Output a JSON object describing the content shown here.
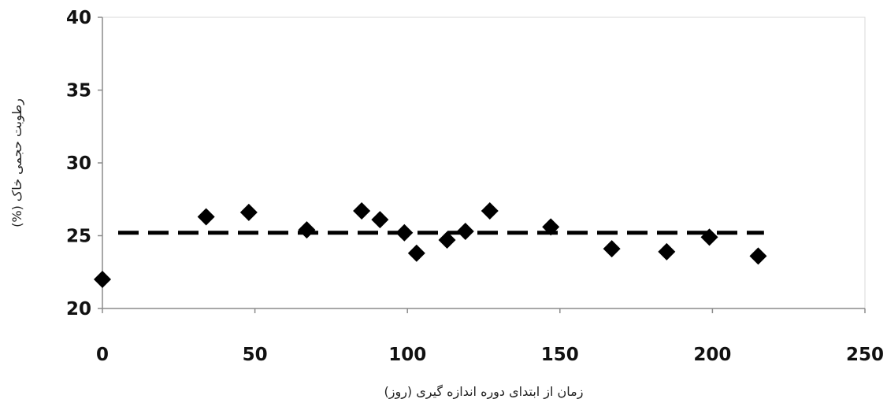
{
  "chart_data": {
    "type": "scatter",
    "title": "",
    "xlabel": "زمان از ابتدای دوره اندازه گیری (روز)",
    "ylabel": "رطوبت حجمی خاک (%)",
    "xlim": [
      0,
      250
    ],
    "ylim": [
      20,
      40
    ],
    "xticks": [
      0,
      50,
      100,
      150,
      200,
      250
    ],
    "yticks": [
      20,
      25,
      30,
      35,
      40
    ],
    "grid": false,
    "legend": "none",
    "series": [
      {
        "marker": "diamond",
        "color": "#000000",
        "points": [
          {
            "x": 0,
            "y": 22.0
          },
          {
            "x": 34,
            "y": 26.3
          },
          {
            "x": 48,
            "y": 26.6
          },
          {
            "x": 67,
            "y": 25.4
          },
          {
            "x": 85,
            "y": 26.7
          },
          {
            "x": 91,
            "y": 26.1
          },
          {
            "x": 99,
            "y": 25.2
          },
          {
            "x": 103,
            "y": 23.8
          },
          {
            "x": 113,
            "y": 24.7
          },
          {
            "x": 119,
            "y": 25.3
          },
          {
            "x": 127,
            "y": 26.7
          },
          {
            "x": 147,
            "y": 25.6
          },
          {
            "x": 167,
            "y": 24.1
          },
          {
            "x": 185,
            "y": 23.9
          },
          {
            "x": 199,
            "y": 24.9
          },
          {
            "x": 215,
            "y": 23.6
          }
        ]
      }
    ],
    "reference_line": {
      "y": 25.2,
      "x_range": [
        0,
        220
      ],
      "style": "dashed",
      "color": "#000000"
    }
  }
}
